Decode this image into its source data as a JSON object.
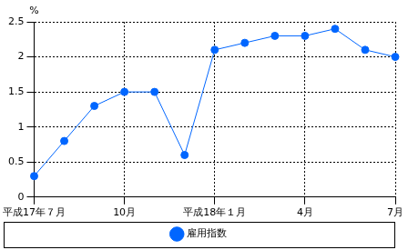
{
  "chart_data": {
    "type": "line",
    "y_label": "%",
    "categories": [
      "平成17年７月",
      null,
      null,
      "10月",
      null,
      null,
      "平成18年１月",
      null,
      null,
      "4月",
      null,
      null,
      "7月"
    ],
    "series": [
      {
        "name": "雇用指数",
        "color": "#0066ff",
        "marker": "circle",
        "values": [
          0.3,
          0.8,
          1.3,
          1.5,
          1.5,
          0.6,
          2.1,
          2.2,
          2.3,
          2.3,
          2.4,
          2.1,
          2.0
        ]
      }
    ],
    "ylim": [
      0,
      2.5
    ],
    "yticks": [
      0,
      0.5,
      1,
      1.5,
      2,
      2.5
    ],
    "grid": true,
    "legend": "bottom"
  }
}
